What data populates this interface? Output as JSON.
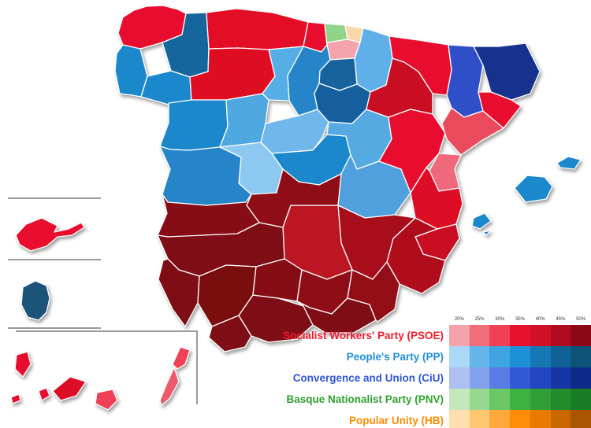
{
  "page": {
    "background": "#ffffff"
  },
  "legend": {
    "scale_labels": [
      "20%",
      "25%",
      "30%",
      "35%",
      "40%",
      "45%",
      "50%"
    ],
    "parties": [
      {
        "id": "psoe",
        "label": "Socialist Workers' Party (PSOE)",
        "label_color": "#ee1c2e",
        "swatches": [
          "#f5a2ab",
          "#f06d7a",
          "#ee4156",
          "#e8112d",
          "#d10f26",
          "#b00c20",
          "#8a0916"
        ]
      },
      {
        "id": "pp",
        "label": "People's Party (PP)",
        "label_color": "#1e90d8",
        "swatches": [
          "#aad8f7",
          "#64b5ea",
          "#3fa4e2",
          "#1e90d8",
          "#1578b4",
          "#0f6296",
          "#0d5478"
        ]
      },
      {
        "id": "ciu",
        "label": "Convergence and Union (CiU)",
        "label_color": "#2f55d4",
        "swatches": [
          "#aec0f2",
          "#84a2ec",
          "#5b7be4",
          "#3159d8",
          "#2246c2",
          "#1636a6",
          "#0e2a88"
        ]
      },
      {
        "id": "pnv",
        "label": "Basque Nationalist Party (PNV)",
        "label_color": "#2ea12e",
        "swatches": [
          "#c4e8bc",
          "#97d890",
          "#69c764",
          "#3fb13e",
          "#2f9f36",
          "#228c2c",
          "#187d24"
        ]
      },
      {
        "id": "hb",
        "label": "Popular Unity (HB)",
        "label_color": "#ff8c00",
        "swatches": [
          "#ffdfae",
          "#ffc672",
          "#ffa83c",
          "#ff8c06",
          "#e97a00",
          "#c96800",
          "#aa5600"
        ]
      }
    ]
  },
  "map": {
    "stroke": "#ffffff",
    "provinces": {
      "coruna": {
        "name": "A Coruña",
        "color": "#e8112d"
      },
      "lugo": {
        "name": "Lugo",
        "color": "#15669e"
      },
      "pontevedra": {
        "name": "Pontevedra",
        "color": "#1f88cc"
      },
      "ourense": {
        "name": "Ourense",
        "color": "#1f88cc"
      },
      "asturias": {
        "name": "Asturias",
        "color": "#e31125"
      },
      "cantabria": {
        "name": "Cantabria",
        "color": "#e8112d"
      },
      "vizcaya": {
        "name": "Biscay",
        "color": "#8fd488"
      },
      "guipuzcoa": {
        "name": "Gipuzkoa",
        "color": "#fad7a8"
      },
      "alava": {
        "name": "Álava",
        "color": "#f5a3ac"
      },
      "navarra": {
        "name": "Navarre",
        "color": "#5fb0e8"
      },
      "larioja": {
        "name": "La Rioja",
        "color": "#12629c"
      },
      "burgos": {
        "name": "Burgos",
        "color": "#2585c8"
      },
      "palencia": {
        "name": "Palencia",
        "color": "#55aee6"
      },
      "leon": {
        "name": "León",
        "color": "#df1124"
      },
      "zamora": {
        "name": "Zamora",
        "color": "#1f88cc"
      },
      "valladolid": {
        "name": "Valladolid",
        "color": "#4fa8e0"
      },
      "soria": {
        "name": "Soria",
        "color": "#155e9e"
      },
      "segovia": {
        "name": "Segovia",
        "color": "#6fb8ec"
      },
      "avila": {
        "name": "Ávila",
        "color": "#8cc8f0"
      },
      "salamanca": {
        "name": "Salamanca",
        "color": "#2585c8"
      },
      "madrid": {
        "name": "Madrid",
        "color": "#1f88cc"
      },
      "guadalajara": {
        "name": "Guadalajara",
        "color": "#55aae2"
      },
      "cuenca": {
        "name": "Cuenca",
        "color": "#4fa0dc"
      },
      "zaragoza": {
        "name": "Zaragoza",
        "color": "#c90e22"
      },
      "huesca": {
        "name": "Huesca",
        "color": "#e8112d"
      },
      "teruel": {
        "name": "Teruel",
        "color": "#e8112d"
      },
      "lleida": {
        "name": "Lleida",
        "color": "#2e50c8"
      },
      "girona": {
        "name": "Girona",
        "color": "#15328c"
      },
      "barcelona": {
        "name": "Barcelona",
        "color": "#e8112d"
      },
      "tarragona": {
        "name": "Tarragona",
        "color": "#ea4b5c"
      },
      "castellon": {
        "name": "Castellón",
        "color": "#f0697a"
      },
      "valencia": {
        "name": "Valencia",
        "color": "#de1126"
      },
      "alicante": {
        "name": "Alicante",
        "color": "#c90e22"
      },
      "murcia": {
        "name": "Murcia",
        "color": "#b00c1e"
      },
      "albacete": {
        "name": "Albacete",
        "color": "#a80c1c"
      },
      "ciudadreal": {
        "name": "Ciudad Real",
        "color": "#bb1220"
      },
      "toledo": {
        "name": "Toledo",
        "color": "#8e0a16"
      },
      "caceres": {
        "name": "Cáceres",
        "color": "#860a14"
      },
      "badajoz": {
        "name": "Badajoz",
        "color": "#7e0912"
      },
      "huelva": {
        "name": "Huelva",
        "color": "#7e0912"
      },
      "sevilla": {
        "name": "Sevilla",
        "color": "#7a0911"
      },
      "cadiz": {
        "name": "Cádiz",
        "color": "#7e0912"
      },
      "malaga": {
        "name": "Málaga",
        "color": "#7e0912"
      },
      "cordoba": {
        "name": "Córdoba",
        "color": "#860a14"
      },
      "jaen": {
        "name": "Jaén",
        "color": "#8e0a16"
      },
      "granada": {
        "name": "Granada",
        "color": "#7e0912"
      },
      "almeria": {
        "name": "Almería",
        "color": "#930a17"
      },
      "mallorca": {
        "name": "Mallorca",
        "color": "#1f88cc"
      },
      "menorca": {
        "name": "Menorca",
        "color": "#1f88cc"
      },
      "ibiza": {
        "name": "Ibiza",
        "color": "#1f88cc"
      },
      "formentera": {
        "name": "Formentera",
        "color": "#1f88cc"
      },
      "lapalma": {
        "name": "La Palma",
        "color": "#e8112d"
      },
      "hierro": {
        "name": "El Hierro",
        "color": "#e8112d"
      },
      "gomera": {
        "name": "La Gomera",
        "color": "#e8112d"
      },
      "tenerife": {
        "name": "Tenerife",
        "color": "#dc1028"
      },
      "grancanaria": {
        "name": "Gran Canaria",
        "color": "#ef4055"
      },
      "fuerteventura": {
        "name": "Fuerteventura",
        "color": "#ea5a6a"
      },
      "lanzarote": {
        "name": "Lanzarote",
        "color": "#ef4055"
      },
      "ceuta": {
        "name": "Ceuta",
        "color": "#e8112d"
      },
      "melilla": {
        "name": "Melilla",
        "color": "#1c5379"
      }
    }
  }
}
